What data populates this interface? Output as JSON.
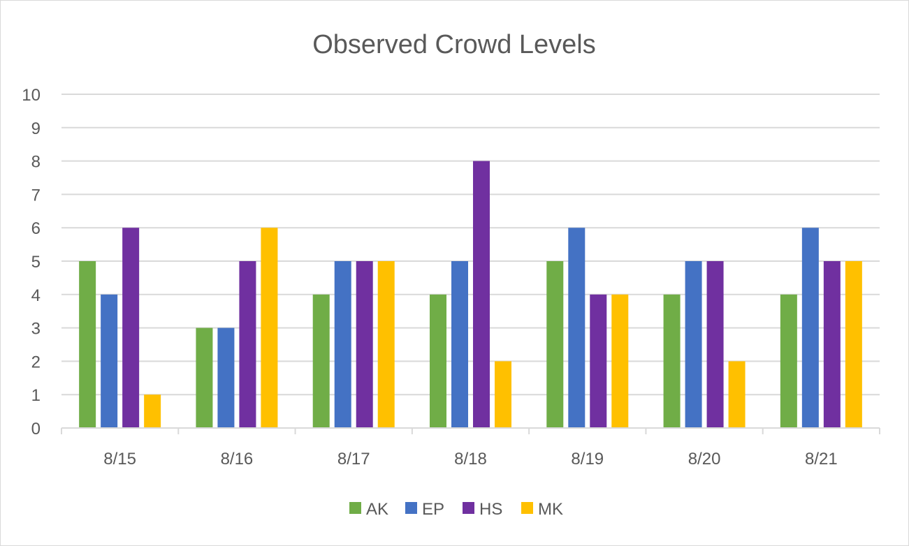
{
  "chart_data": {
    "type": "bar",
    "title": "Observed Crowd Levels",
    "xlabel": "",
    "ylabel": "",
    "ylim": [
      0,
      10
    ],
    "yticks": [
      "0",
      "1",
      "2",
      "3",
      "4",
      "5",
      "6",
      "7",
      "8",
      "9",
      "10"
    ],
    "categories": [
      "8/15",
      "8/16",
      "8/17",
      "8/18",
      "8/19",
      "8/20",
      "8/21"
    ],
    "series": [
      {
        "name": "AK",
        "color": "#70ad47",
        "values": [
          5,
          3,
          4,
          4,
          5,
          4,
          4
        ]
      },
      {
        "name": "EP",
        "color": "#4472c4",
        "values": [
          4,
          3,
          5,
          5,
          6,
          5,
          6
        ]
      },
      {
        "name": "HS",
        "color": "#7030a0",
        "values": [
          6,
          5,
          5,
          8,
          4,
          5,
          5
        ]
      },
      {
        "name": "MK",
        "color": "#ffc000",
        "values": [
          1,
          6,
          5,
          2,
          4,
          2,
          5
        ]
      }
    ],
    "grid": true,
    "legend_position": "bottom"
  }
}
